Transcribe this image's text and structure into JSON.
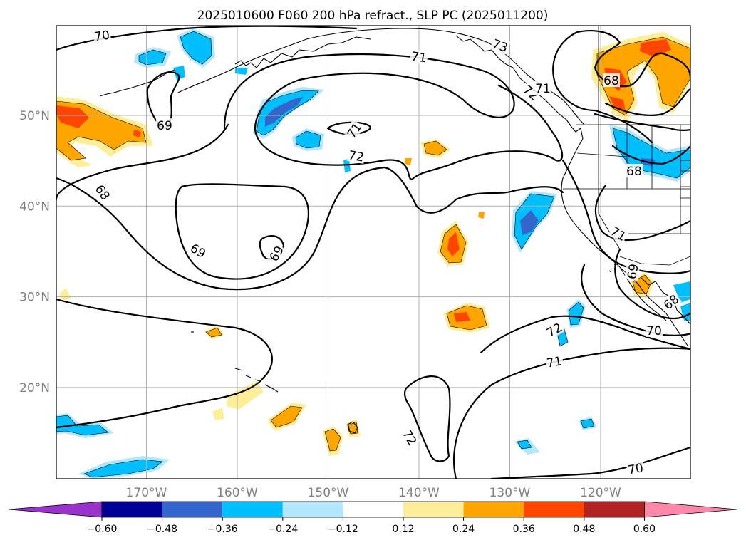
{
  "title": "2025010600 F060 200 hPa refract., SLP PC (2025011200)",
  "map": {
    "lat_labels": [
      {
        "lat": 50,
        "label": "50°N"
      },
      {
        "lat": 40,
        "label": "40°N"
      },
      {
        "lat": 30,
        "label": "30°N"
      },
      {
        "lat": 20,
        "label": "20°N"
      }
    ],
    "lon_labels": [
      {
        "lon": -170,
        "label": "170°W"
      },
      {
        "lon": -160,
        "label": "160°W"
      },
      {
        "lon": -150,
        "label": "150°W"
      },
      {
        "lon": -140,
        "label": "140°W"
      },
      {
        "lon": -130,
        "label": "130°W"
      },
      {
        "lon": -120,
        "label": "120°W"
      }
    ],
    "contour_labels": [
      "70",
      "71",
      "69",
      "68",
      "69",
      "71",
      "72",
      "73",
      "69",
      "68",
      "71",
      "68",
      "72",
      "71",
      "70",
      "72",
      "70",
      "72",
      "68",
      "69",
      "71"
    ]
  },
  "colorbar": {
    "bounds": [
      "-0.60",
      "-0.48",
      "-0.36",
      "-0.24",
      "-0.12",
      "0.12",
      "0.24",
      "0.36",
      "0.48",
      "0.60"
    ],
    "colors": [
      "#9933cc",
      "#000099",
      "#3366cc",
      "#00bfff",
      "#b3e6ff",
      "#ffffff",
      "#ffee99",
      "#ffa500",
      "#ff4500",
      "#b22222",
      "#ff88aa"
    ]
  },
  "colors": {
    "orange": "#ffa500",
    "light_yellow": "#ffee99",
    "red_orange": "#ff4500",
    "deep_sky_blue": "#00bfff",
    "light_blue": "#b3e6ff",
    "royal_blue": "#3366cc",
    "grid": "#b0b0b0"
  }
}
